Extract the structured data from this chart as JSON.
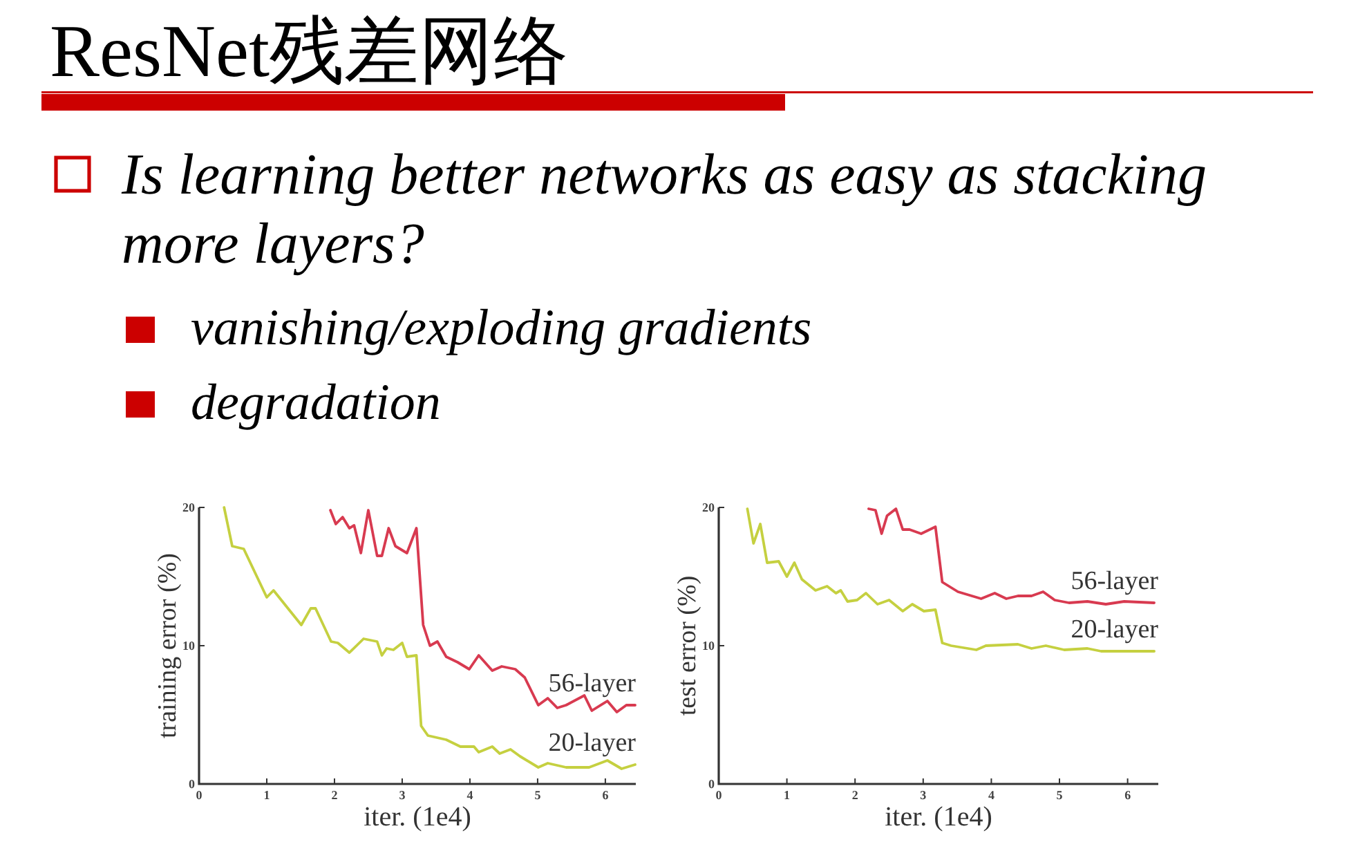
{
  "chart_data": [
    {
      "type": "other",
      "title": "ResNet残差网络",
      "annotations": [
        "Is learning better networks as easy as stacking more layers?",
        "vanishing/exploding gradients",
        "degradation"
      ]
    },
    {
      "type": "line",
      "xlabel": "iter. (1e4)",
      "ylabel": "training error (%)",
      "xlim": [
        0,
        6.45
      ],
      "ylim": [
        0,
        20
      ],
      "xticks": [
        0,
        1,
        2,
        3,
        4,
        5,
        6
      ],
      "yticks": [
        0,
        10,
        20
      ],
      "series": [
        {
          "name": "56-layer",
          "color": "#d83a50",
          "x": [
            1.94,
            2.02,
            2.12,
            2.22,
            2.29,
            2.39,
            2.5,
            2.63,
            2.7,
            2.8,
            2.9,
            3.07,
            3.21,
            3.31,
            3.41,
            3.52,
            3.65,
            3.82,
            3.99,
            4.13,
            4.33,
            4.47,
            4.67,
            4.81,
            5.01,
            5.15,
            5.29,
            5.42,
            5.69,
            5.8,
            6.03,
            6.17,
            6.31,
            6.44
          ],
          "values": [
            19.8,
            18.8,
            19.3,
            18.5,
            18.7,
            16.7,
            19.8,
            16.5,
            16.5,
            18.5,
            17.2,
            16.7,
            18.5,
            11.5,
            10.0,
            10.3,
            9.2,
            8.8,
            8.3,
            9.3,
            8.2,
            8.5,
            8.3,
            7.7,
            5.7,
            6.2,
            5.5,
            5.7,
            6.4,
            5.3,
            6.0,
            5.2,
            5.7,
            5.7
          ]
        },
        {
          "name": "20-layer",
          "color": "#c5d040",
          "x": [
            0.37,
            0.49,
            0.66,
            1.0,
            1.1,
            1.51,
            1.65,
            1.72,
            1.95,
            2.05,
            2.22,
            2.43,
            2.63,
            2.7,
            2.77,
            2.87,
            3.0,
            3.07,
            3.21,
            3.28,
            3.38,
            3.65,
            3.86,
            4.06,
            4.13,
            4.33,
            4.44,
            4.6,
            4.74,
            5.01,
            5.15,
            5.42,
            5.76,
            6.03,
            6.24,
            6.44
          ],
          "values": [
            20.0,
            17.2,
            17.0,
            13.5,
            14.0,
            11.5,
            12.7,
            12.7,
            10.3,
            10.2,
            9.5,
            10.5,
            10.3,
            9.3,
            9.8,
            9.7,
            10.2,
            9.2,
            9.3,
            4.2,
            3.5,
            3.2,
            2.7,
            2.7,
            2.3,
            2.7,
            2.2,
            2.5,
            2.0,
            1.2,
            1.5,
            1.2,
            1.2,
            1.7,
            1.1,
            1.4
          ]
        }
      ]
    },
    {
      "type": "line",
      "xlabel": "iter. (1e4)",
      "ylabel": "test error (%)",
      "xlim": [
        0,
        6.45
      ],
      "ylim": [
        0,
        20
      ],
      "xticks": [
        0,
        1,
        2,
        3,
        4,
        5,
        6
      ],
      "yticks": [
        0,
        10,
        20
      ],
      "series": [
        {
          "name": "56-layer",
          "color": "#d83a50",
          "x": [
            2.2,
            2.3,
            2.39,
            2.47,
            2.6,
            2.7,
            2.8,
            2.97,
            3.18,
            3.28,
            3.51,
            3.85,
            4.05,
            4.22,
            4.39,
            4.59,
            4.76,
            4.93,
            5.14,
            5.41,
            5.68,
            5.95,
            6.39
          ],
          "values": [
            19.9,
            19.8,
            18.1,
            19.4,
            19.9,
            18.4,
            18.4,
            18.1,
            18.6,
            14.6,
            13.9,
            13.4,
            13.8,
            13.4,
            13.6,
            13.6,
            13.9,
            13.3,
            13.1,
            13.2,
            13.0,
            13.2,
            13.1
          ]
        },
        {
          "name": "20-layer",
          "color": "#c5d040",
          "x": [
            0.42,
            0.51,
            0.61,
            0.71,
            0.88,
            1.0,
            1.11,
            1.22,
            1.42,
            1.59,
            1.72,
            1.79,
            1.89,
            2.03,
            2.16,
            2.33,
            2.5,
            2.7,
            2.84,
            3.01,
            3.18,
            3.28,
            3.41,
            3.78,
            3.92,
            4.39,
            4.59,
            4.8,
            5.07,
            5.41,
            5.61,
            6.01,
            6.39
          ],
          "values": [
            19.9,
            17.4,
            18.8,
            16.0,
            16.1,
            15.0,
            16.0,
            14.8,
            14.0,
            14.3,
            13.8,
            14.0,
            13.2,
            13.3,
            13.8,
            13.0,
            13.3,
            12.5,
            13.0,
            12.5,
            12.6,
            10.2,
            10.0,
            9.7,
            10.0,
            10.1,
            9.8,
            10.0,
            9.7,
            9.8,
            9.6,
            9.6,
            9.6
          ]
        }
      ]
    }
  ]
}
